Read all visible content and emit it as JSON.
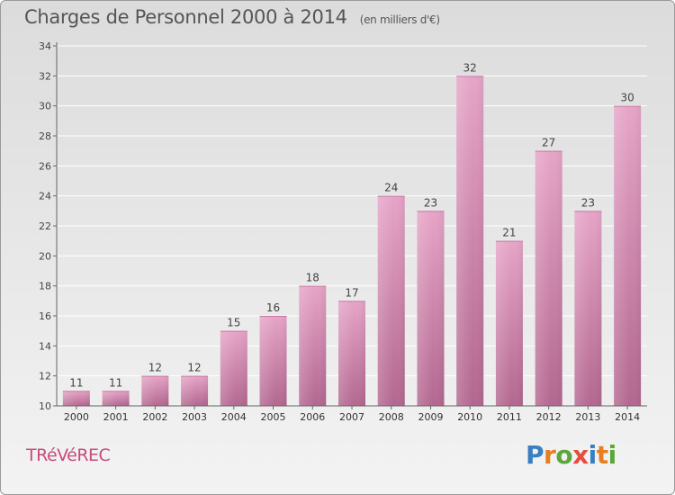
{
  "chart_data": {
    "type": "bar",
    "title": "Charges de Personnel 2000 à 2014",
    "subtitle": "(en milliers d'€)",
    "categories": [
      "2000",
      "2001",
      "2002",
      "2003",
      "2004",
      "2005",
      "2006",
      "2007",
      "2008",
      "2009",
      "2010",
      "2011",
      "2012",
      "2013",
      "2014"
    ],
    "values": [
      11,
      11,
      12,
      12,
      15,
      16,
      18,
      17,
      24,
      23,
      32,
      21,
      27,
      23,
      30
    ],
    "ylim": [
      10,
      34
    ],
    "yticks": [
      10,
      12,
      14,
      16,
      18,
      20,
      22,
      24,
      26,
      28,
      30,
      32,
      34
    ],
    "grid": true,
    "bar_color": "#d98bb5"
  },
  "location": "TRéVéREC",
  "logo": {
    "letters": [
      "P",
      "r",
      "o",
      "x",
      "i",
      "t",
      "i"
    ],
    "colors": [
      "#3a7fc1",
      "#e67e22",
      "#5aa83a",
      "#e74c3c",
      "#3a7fc1",
      "#e67e22",
      "#5aa83a"
    ]
  }
}
